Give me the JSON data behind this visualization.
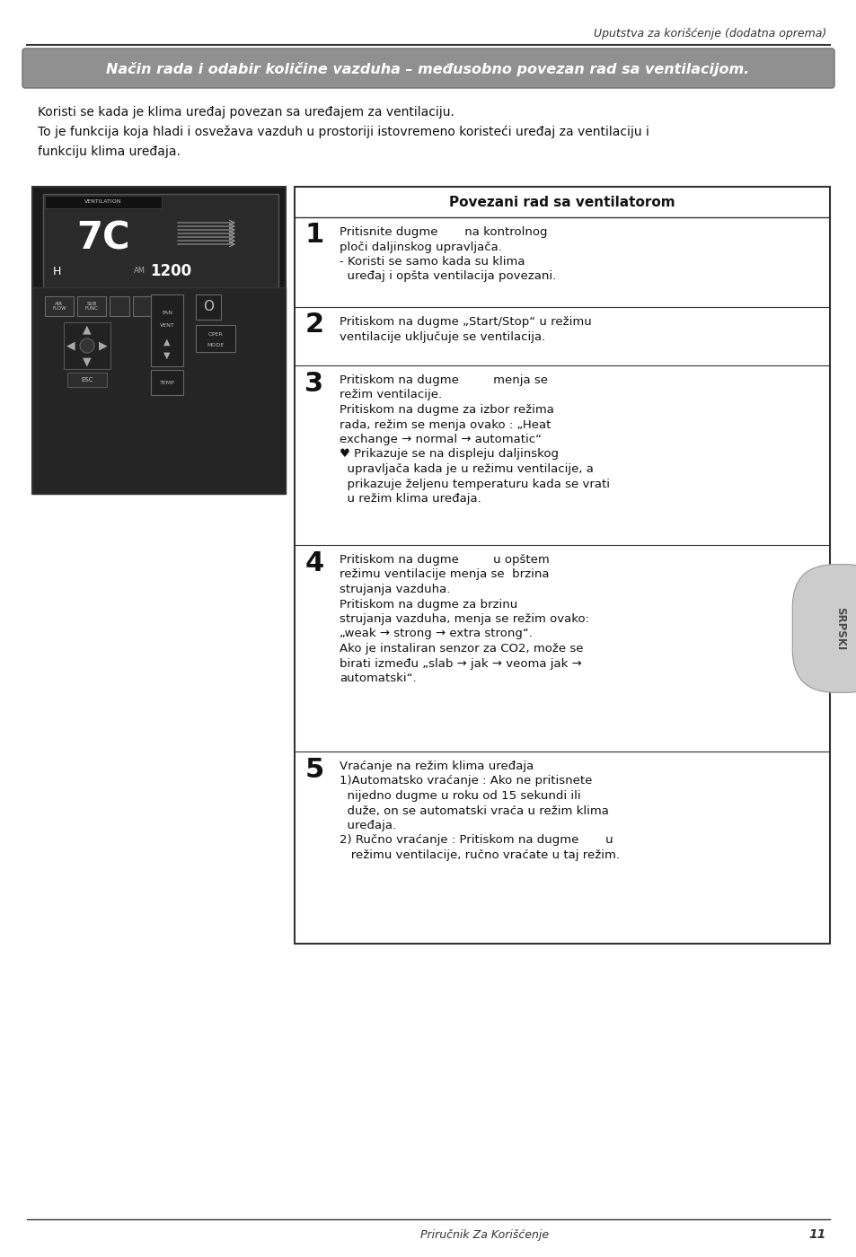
{
  "page_width": 9.54,
  "page_height": 14.0,
  "bg_color": "#ffffff",
  "header_italic_text": "Uputstva za korišćenje (dodatna oprema)",
  "title_banner_text": "Način rada i odabir količine vazduha – međusobno povezan rad sa ventilacijom.",
  "intro_line1": "Koristi se kada je klima uređaj povezan sa uređajem za ventilaciju.",
  "intro_line2": "To je funkcija koja hladi i osvežava vazduh u prostoriji istovremeno koristeći uređaj za ventilaciju i",
  "intro_line3": "funkciju klima uređaja.",
  "table_header": "Povezani rad sa ventilatorom",
  "steps": [
    {
      "num": "1",
      "lines": [
        "Pritisnite dugme       na kontrolnog",
        "ploči daljinskog upravljača.",
        "- Koristi se samo kada su klima",
        "  uređaj i opšta ventilacija povezani."
      ]
    },
    {
      "num": "2",
      "lines": [
        "Pritiskom na dugme „Start/Stop“ u režimu",
        "ventilacije uključuje se ventilacija."
      ]
    },
    {
      "num": "3",
      "lines": [
        "Pritiskom na dugme         menja se",
        "režim ventilacije.",
        "Pritiskom na dugme za izbor režima",
        "rada, režim se menja ovako : „Heat",
        "exchange → normal → automatic“",
        "♥ Prikazuje se na displeju daljinskog",
        "  upravljača kada je u režimu ventilacije, a",
        "  prikazuje željenu temperaturu kada se vrati",
        "  u režim klima uređaja."
      ]
    },
    {
      "num": "4",
      "lines": [
        "Pritiskom na dugme         u opštem",
        "režimu ventilacije menja se  brzina",
        "strujanja vazduha.",
        "Pritiskom na dugme za brzinu",
        "strujanja vazduha, menja se režim ovako:",
        "„weak → strong → extra strong“.",
        "Ako je instaliran senzor za CO2, može se",
        "birati između „slab → jak → veoma jak →",
        "automatski“."
      ]
    },
    {
      "num": "5",
      "lines": [
        "Vraćanje na režim klima uređaja",
        "1)Automatsko vraćanje : Ako ne pritisnete",
        "  nijedno dugme u roku od 15 sekundi ili",
        "  duže, on se automatski vraća u režim klima",
        "  uređaja.",
        "2) Ručno vraćanje : Pritiskom na dugme       u",
        "   režimu ventilacije, ručno vraćate u taj režim."
      ]
    }
  ],
  "step_heights": [
    100,
    65,
    200,
    230,
    210
  ],
  "footer_text": "Priručnik Za Korišćenje",
  "footer_page": "11",
  "side_label": "SRPSKI",
  "side_label_color": "#4a4a4a"
}
